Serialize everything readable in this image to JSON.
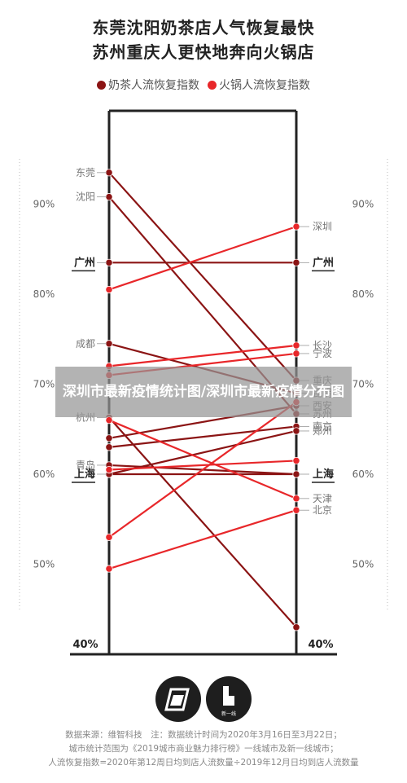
{
  "title_line1": "东莞沈阳奶茶店人气恢复最快",
  "title_line2": "苏州重庆人更快地奔向火锅店",
  "legend": [
    {
      "label": "奶茶人流恢复指数",
      "color": "#8b1414"
    },
    {
      "label": "火锅人流恢复指数",
      "color": "#e8272a"
    }
  ],
  "banner_text": "深圳市最新疫情统计图/深圳市最新疫情分布图",
  "logo_caption": "新一线",
  "footer": [
    "数据来源：维智科技　注：数据统计时间为2020年3月16日至3月22日；",
    "城市统计范围为《2019城市商业魅力排行榜》一线城市及新一线城市；",
    "人流恢复指数=2020年第12周日均到店人流数量÷2019年12月日均到店人流数量"
  ],
  "chart_data": {
    "type": "slope",
    "y_ticks": [
      "90%",
      "80%",
      "70%",
      "60%",
      "50%",
      "40%"
    ],
    "ylim": [
      40,
      95
    ],
    "colors": {
      "milk_tea": "#8b1414",
      "hotpot": "#e8272a"
    },
    "left_labels": [
      {
        "city": "东莞",
        "value": 93.5,
        "bold": false
      },
      {
        "city": "沈阳",
        "value": 90.8,
        "bold": false
      },
      {
        "city": "广州",
        "value": 83.5,
        "bold": true
      },
      {
        "city": "成都",
        "value": 74.5,
        "bold": false
      },
      {
        "city": "杭州",
        "value": 66.3,
        "bold": false
      },
      {
        "city": "青岛",
        "value": 61.0,
        "bold": false
      },
      {
        "city": "上海",
        "value": 60.0,
        "bold": true
      }
    ],
    "right_labels": [
      {
        "city": "深圳",
        "value": 87.5,
        "bold": false
      },
      {
        "city": "广州",
        "value": 83.5,
        "bold": true
      },
      {
        "city": "长沙",
        "value": 74.3,
        "bold": false
      },
      {
        "city": "宁波",
        "value": 73.4,
        "bold": false
      },
      {
        "city": "重庆",
        "value": 70.4,
        "bold": false
      },
      {
        "city": "昆明",
        "value": 69.0,
        "bold": false
      },
      {
        "city": "西安",
        "value": 67.6,
        "bold": false
      },
      {
        "city": "苏州",
        "value": 66.7,
        "bold": false
      },
      {
        "city": "南京",
        "value": 65.3,
        "bold": false
      },
      {
        "city": "郑州",
        "value": 64.8,
        "bold": false
      },
      {
        "city": "上海",
        "value": 60.0,
        "bold": true
      },
      {
        "city": "天津",
        "value": 57.3,
        "bold": false
      },
      {
        "city": "北京",
        "value": 56.0,
        "bold": false
      }
    ],
    "series": [
      {
        "type": "milk_tea",
        "left": 93.5,
        "right": 70.4
      },
      {
        "type": "milk_tea",
        "left": 90.8,
        "right": 66.7
      },
      {
        "type": "milk_tea",
        "left": 83.5,
        "right": 83.5
      },
      {
        "type": "milk_tea",
        "left": 74.5,
        "right": 69.0
      },
      {
        "type": "milk_tea",
        "left": 66.3,
        "right": 43.0
      },
      {
        "type": "milk_tea",
        "left": 64.0,
        "right": 67.6
      },
      {
        "type": "milk_tea",
        "left": 63.0,
        "right": 65.3
      },
      {
        "type": "milk_tea",
        "left": 61.0,
        "right": 60.0
      },
      {
        "type": "milk_tea",
        "left": 60.0,
        "right": 60.0
      },
      {
        "type": "milk_tea",
        "left": 60.0,
        "right": 64.8
      },
      {
        "type": "hotpot",
        "left": 80.5,
        "right": 87.5
      },
      {
        "type": "hotpot",
        "left": 72.0,
        "right": 74.3
      },
      {
        "type": "hotpot",
        "left": 71.0,
        "right": 73.4
      },
      {
        "type": "hotpot",
        "left": 66.0,
        "right": 57.3
      },
      {
        "type": "hotpot",
        "left": 53.0,
        "right": 68.0
      },
      {
        "type": "hotpot",
        "left": 49.5,
        "right": 56.0
      },
      {
        "type": "hotpot",
        "left": 60.5,
        "right": 61.5
      }
    ]
  }
}
